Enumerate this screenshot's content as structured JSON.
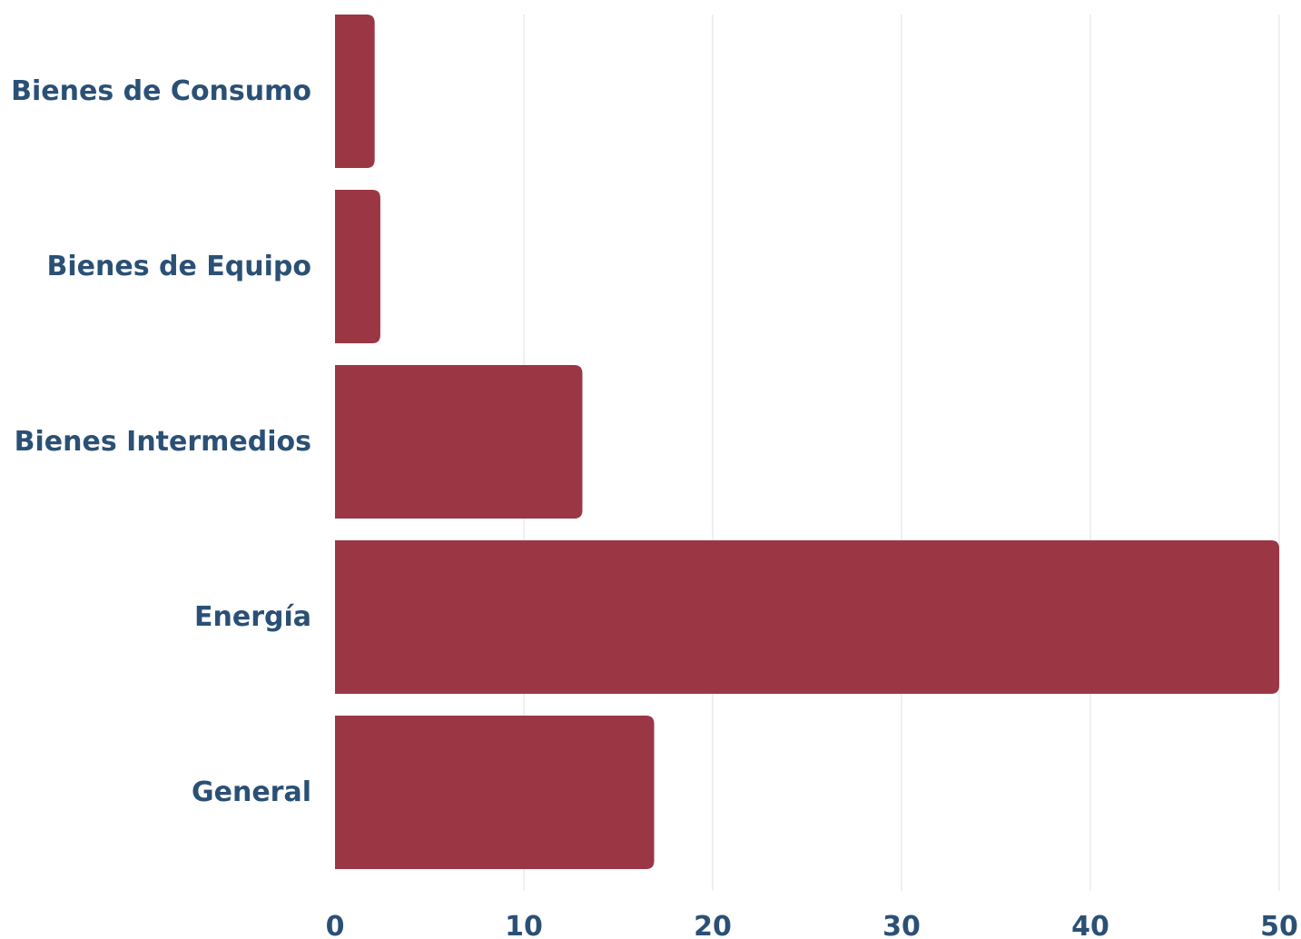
{
  "chart_data": {
    "type": "bar",
    "orientation": "horizontal",
    "categories": [
      "Bienes de Consumo",
      "Bienes de Equipo",
      "Bienes Intermedios",
      "Energía",
      "General"
    ],
    "series": [
      {
        "values": [
          2.1,
          2.4,
          13.1,
          50.0,
          16.9
        ]
      }
    ],
    "xlim": [
      0,
      50
    ],
    "xticks": [
      0,
      10,
      20,
      30,
      40,
      50
    ],
    "tick_labels": [
      "0",
      "10",
      "20",
      "30",
      "40",
      "50"
    ],
    "title": "",
    "xlabel": "",
    "ylabel": "",
    "grid": "vertical",
    "legend": "none",
    "colors": {
      "bar": "#9b3645",
      "label": "#2b5075",
      "grid": "#e2e2e2"
    }
  }
}
